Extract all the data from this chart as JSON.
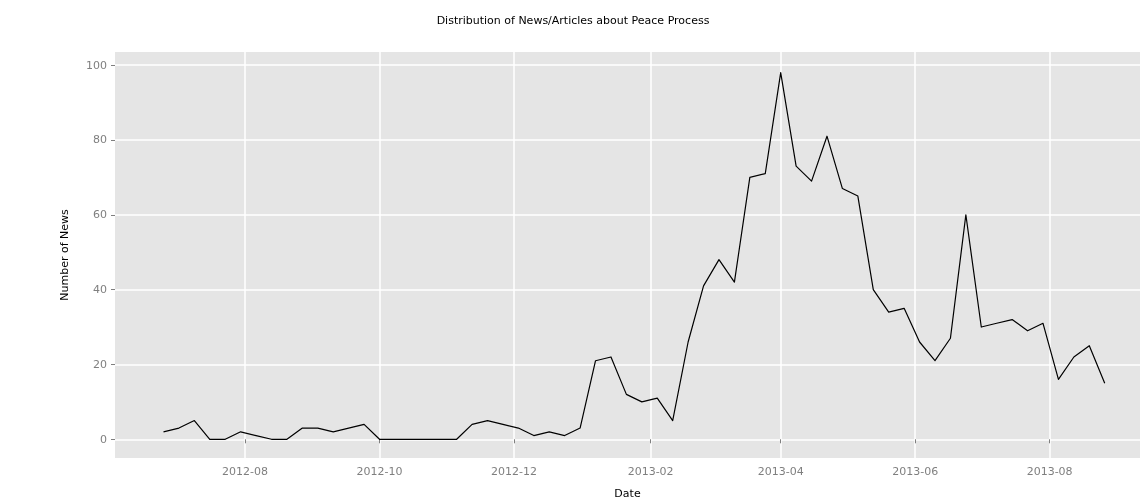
{
  "chart_data": {
    "type": "line",
    "title": "Distribution of News/Articles about Peace Process",
    "xlabel": "Date",
    "ylabel": "Number of News",
    "x": [
      "2012-06-25",
      "2012-07-02",
      "2012-07-09",
      "2012-07-16",
      "2012-07-23",
      "2012-07-30",
      "2012-08-06",
      "2012-08-13",
      "2012-08-20",
      "2012-08-27",
      "2012-09-03",
      "2012-09-10",
      "2012-09-17",
      "2012-09-24",
      "2012-10-01",
      "2012-10-08",
      "2012-10-15",
      "2012-10-22",
      "2012-10-29",
      "2012-11-05",
      "2012-11-12",
      "2012-11-19",
      "2012-11-26",
      "2012-12-03",
      "2012-12-10",
      "2012-12-17",
      "2012-12-24",
      "2012-12-31",
      "2013-01-07",
      "2013-01-14",
      "2013-01-21",
      "2013-01-28",
      "2013-02-04",
      "2013-02-11",
      "2013-02-18",
      "2013-02-25",
      "2013-03-04",
      "2013-03-11",
      "2013-03-18",
      "2013-03-25",
      "2013-04-01",
      "2013-04-08",
      "2013-04-15",
      "2013-04-22",
      "2013-04-29",
      "2013-05-06",
      "2013-05-13",
      "2013-05-20",
      "2013-05-27",
      "2013-06-03",
      "2013-06-10",
      "2013-06-17",
      "2013-06-24",
      "2013-07-01",
      "2013-07-08",
      "2013-07-15",
      "2013-07-22",
      "2013-07-29",
      "2013-08-05",
      "2013-08-12",
      "2013-08-19",
      "2013-08-26"
    ],
    "series": [
      {
        "color": "#000000",
        "values": [
          2,
          3,
          5,
          0,
          0,
          2,
          1,
          0,
          0,
          3,
          3,
          2,
          3,
          4,
          0,
          0,
          0,
          0,
          0,
          0,
          4,
          5,
          4,
          3,
          1,
          2,
          1,
          3,
          21,
          22,
          12,
          10,
          11,
          5,
          26,
          41,
          48,
          42,
          70,
          71,
          98,
          73,
          69,
          81,
          67,
          65,
          40,
          34,
          35,
          26,
          21,
          27,
          60,
          30,
          31,
          32,
          29,
          31,
          16,
          22,
          25,
          15
        ]
      }
    ],
    "xlim": [
      "2012-06-03",
      "2013-09-11"
    ],
    "xticks": [
      {
        "value": "2012-08-01",
        "label": "2012-08"
      },
      {
        "value": "2012-10-01",
        "label": "2012-10"
      },
      {
        "value": "2012-12-01",
        "label": "2012-12"
      },
      {
        "value": "2013-02-01",
        "label": "2013-02"
      },
      {
        "value": "2013-04-01",
        "label": "2013-04"
      },
      {
        "value": "2013-06-01",
        "label": "2013-06"
      },
      {
        "value": "2013-08-01",
        "label": "2013-08"
      }
    ],
    "ylim": [
      -5,
      103.5
    ],
    "yticks": [
      0,
      20,
      40,
      60,
      80,
      100
    ],
    "grid": true,
    "marker": "none",
    "line_style": "solid"
  }
}
